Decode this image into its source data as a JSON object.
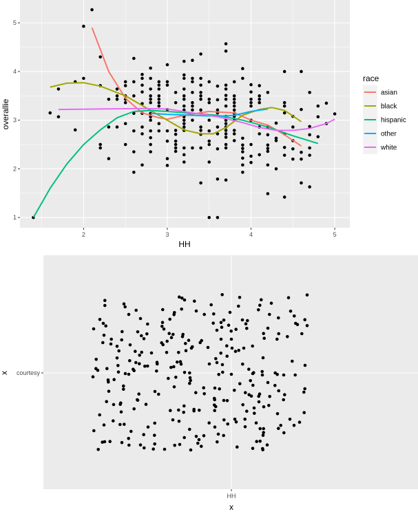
{
  "chart_data": [
    {
      "type": "scatter",
      "xlabel": "HH",
      "ylabel": "overallie",
      "xlim": [
        1.24,
        5.18
      ],
      "ylim": [
        0.79,
        5.47
      ],
      "xticks": [
        2,
        3,
        4,
        5
      ],
      "yticks": [
        1,
        2,
        3,
        4,
        5
      ],
      "grid": true,
      "legend": {
        "title": "race",
        "placement": "right"
      },
      "points": [
        [
          2.1,
          5.27
        ],
        [
          2.0,
          4.93
        ],
        [
          2.2,
          4.3
        ],
        [
          2.0,
          3.86
        ],
        [
          1.9,
          3.79
        ],
        [
          1.7,
          3.64
        ],
        [
          2.2,
          3.71
        ],
        [
          1.6,
          3.15
        ],
        [
          1.7,
          3.07
        ],
        [
          1.9,
          2.8
        ],
        [
          1.4,
          1.0
        ],
        [
          2.2,
          2.5
        ],
        [
          2.2,
          2.43
        ],
        [
          2.3,
          3.43
        ],
        [
          2.3,
          2.86
        ],
        [
          2.3,
          2.21
        ],
        [
          2.4,
          3.64
        ],
        [
          2.4,
          3.5
        ],
        [
          2.4,
          3.43
        ],
        [
          2.4,
          2.86
        ],
        [
          2.5,
          3.79
        ],
        [
          2.5,
          3.71
        ],
        [
          2.5,
          3.5
        ],
        [
          2.5,
          3.43
        ],
        [
          2.5,
          3.36
        ],
        [
          2.5,
          2.93
        ],
        [
          2.5,
          2.5
        ],
        [
          2.6,
          4.27
        ],
        [
          2.6,
          3.79
        ],
        [
          2.6,
          3.5
        ],
        [
          2.6,
          3.14
        ],
        [
          2.6,
          2.78
        ],
        [
          2.6,
          2.35
        ],
        [
          2.6,
          1.93
        ],
        [
          2.7,
          3.94
        ],
        [
          2.7,
          3.86
        ],
        [
          2.7,
          3.72
        ],
        [
          2.7,
          3.58
        ],
        [
          2.7,
          3.34
        ],
        [
          2.7,
          3.14
        ],
        [
          2.7,
          2.86
        ],
        [
          2.7,
          2.72
        ],
        [
          2.7,
          2.08
        ],
        [
          2.8,
          4.07
        ],
        [
          2.8,
          3.86
        ],
        [
          2.8,
          3.64
        ],
        [
          2.8,
          3.5
        ],
        [
          2.8,
          3.43
        ],
        [
          2.8,
          3.36
        ],
        [
          2.8,
          3.14
        ],
        [
          2.8,
          3.07
        ],
        [
          2.8,
          3.0
        ],
        [
          2.8,
          2.78
        ],
        [
          2.8,
          2.64
        ],
        [
          2.8,
          2.5
        ],
        [
          2.8,
          2.35
        ],
        [
          2.9,
          3.79
        ],
        [
          2.9,
          3.72
        ],
        [
          2.9,
          3.64
        ],
        [
          2.9,
          3.5
        ],
        [
          2.9,
          3.43
        ],
        [
          2.9,
          3.36
        ],
        [
          2.9,
          3.29
        ],
        [
          2.9,
          2.93
        ],
        [
          2.9,
          2.78
        ],
        [
          3.0,
          4.14
        ],
        [
          3.0,
          3.79
        ],
        [
          3.0,
          3.72
        ],
        [
          3.0,
          3.22
        ],
        [
          3.0,
          2.78
        ],
        [
          3.0,
          2.57
        ],
        [
          3.0,
          2.21
        ],
        [
          3.0,
          2.07
        ],
        [
          3.1,
          3.57
        ],
        [
          3.1,
          3.36
        ],
        [
          3.1,
          2.79
        ],
        [
          3.1,
          2.71
        ],
        [
          3.1,
          2.57
        ],
        [
          3.1,
          2.5
        ],
        [
          3.1,
          2.43
        ],
        [
          3.1,
          2.36
        ],
        [
          3.2,
          4.21
        ],
        [
          3.2,
          3.93
        ],
        [
          3.2,
          3.86
        ],
        [
          3.2,
          3.64
        ],
        [
          3.2,
          3.5
        ],
        [
          3.2,
          3.43
        ],
        [
          3.2,
          3.29
        ],
        [
          3.2,
          3.21
        ],
        [
          3.2,
          3.07
        ],
        [
          3.2,
          3.0
        ],
        [
          3.2,
          2.93
        ],
        [
          3.2,
          2.86
        ],
        [
          3.2,
          2.79
        ],
        [
          3.2,
          2.43
        ],
        [
          3.2,
          2.29
        ],
        [
          3.2,
          2.14
        ],
        [
          3.3,
          4.23
        ],
        [
          3.3,
          3.86
        ],
        [
          3.3,
          3.79
        ],
        [
          3.3,
          3.57
        ],
        [
          3.3,
          3.36
        ],
        [
          3.3,
          3.29
        ],
        [
          3.3,
          3.21
        ],
        [
          3.3,
          3.0
        ],
        [
          3.3,
          2.43
        ],
        [
          3.4,
          4.36
        ],
        [
          3.4,
          3.86
        ],
        [
          3.4,
          3.72
        ],
        [
          3.4,
          3.57
        ],
        [
          3.4,
          3.5
        ],
        [
          3.4,
          3.43
        ],
        [
          3.4,
          3.21
        ],
        [
          3.4,
          3.14
        ],
        [
          3.4,
          2.86
        ],
        [
          3.4,
          2.79
        ],
        [
          3.4,
          2.71
        ],
        [
          3.4,
          2.43
        ],
        [
          3.4,
          1.71
        ],
        [
          3.5,
          3.79
        ],
        [
          3.5,
          3.43
        ],
        [
          3.5,
          3.36
        ],
        [
          3.5,
          3.0
        ],
        [
          3.5,
          2.78
        ],
        [
          3.5,
          2.57
        ],
        [
          3.5,
          2.5
        ],
        [
          3.5,
          2.14
        ],
        [
          3.5,
          1.0
        ],
        [
          3.6,
          3.7
        ],
        [
          3.6,
          3.42
        ],
        [
          3.6,
          3.21
        ],
        [
          3.6,
          3.15
        ],
        [
          3.6,
          2.86
        ],
        [
          3.6,
          2.72
        ],
        [
          3.6,
          2.41
        ],
        [
          3.6,
          1.79
        ],
        [
          3.6,
          1.0
        ],
        [
          3.7,
          4.57
        ],
        [
          3.7,
          4.42
        ],
        [
          3.7,
          3.72
        ],
        [
          3.7,
          3.64
        ],
        [
          3.7,
          3.51
        ],
        [
          3.7,
          3.43
        ],
        [
          3.7,
          3.29
        ],
        [
          3.7,
          3.08
        ],
        [
          3.7,
          3.0
        ],
        [
          3.7,
          2.93
        ],
        [
          3.7,
          2.86
        ],
        [
          3.7,
          2.79
        ],
        [
          3.7,
          2.72
        ],
        [
          3.7,
          2.65
        ],
        [
          3.7,
          2.5
        ],
        [
          3.7,
          2.43
        ],
        [
          3.7,
          1.77
        ],
        [
          3.8,
          3.79
        ],
        [
          3.8,
          3.5
        ],
        [
          3.8,
          3.43
        ],
        [
          3.8,
          3.36
        ],
        [
          3.8,
          3.29
        ],
        [
          3.8,
          3.21
        ],
        [
          3.8,
          3.14
        ],
        [
          3.8,
          3.08
        ],
        [
          3.8,
          3.0
        ],
        [
          3.8,
          2.79
        ],
        [
          3.8,
          2.72
        ],
        [
          3.8,
          2.58
        ],
        [
          3.9,
          4.06
        ],
        [
          3.9,
          3.86
        ],
        [
          3.9,
          2.63
        ],
        [
          3.9,
          2.49
        ],
        [
          3.9,
          2.42
        ],
        [
          3.9,
          2.35
        ],
        [
          3.9,
          2.22
        ],
        [
          3.9,
          2.08
        ],
        [
          3.9,
          1.93
        ],
        [
          4.0,
          3.73
        ],
        [
          4.0,
          3.58
        ],
        [
          4.0,
          3.43
        ],
        [
          4.0,
          3.36
        ],
        [
          4.0,
          3.29
        ],
        [
          4.0,
          3.0
        ],
        [
          4.0,
          2.5
        ],
        [
          4.0,
          2.26
        ],
        [
          4.0,
          2.13
        ],
        [
          4.1,
          3.71
        ],
        [
          4.1,
          3.5
        ],
        [
          4.1,
          3.43
        ],
        [
          4.1,
          3.36
        ],
        [
          4.1,
          2.86
        ],
        [
          4.1,
          2.72
        ],
        [
          4.1,
          2.29
        ],
        [
          4.2,
          3.57
        ],
        [
          4.2,
          2.86
        ],
        [
          4.2,
          2.7
        ],
        [
          4.2,
          2.49
        ],
        [
          4.2,
          2.42
        ],
        [
          4.2,
          2.36
        ],
        [
          4.2,
          2.08
        ],
        [
          4.2,
          1.49
        ],
        [
          4.3,
          2.94
        ],
        [
          4.3,
          2.63
        ],
        [
          4.3,
          2.58
        ],
        [
          4.3,
          2.0
        ],
        [
          4.4,
          4.0
        ],
        [
          4.4,
          3.36
        ],
        [
          4.4,
          3.29
        ],
        [
          4.4,
          3.15
        ],
        [
          4.4,
          2.72
        ],
        [
          4.4,
          2.44
        ],
        [
          4.4,
          2.28
        ],
        [
          4.4,
          1.42
        ],
        [
          4.5,
          3.08
        ],
        [
          4.5,
          2.86
        ],
        [
          4.5,
          2.58
        ],
        [
          4.5,
          2.41
        ],
        [
          4.5,
          2.2
        ],
        [
          4.6,
          4.0
        ],
        [
          4.6,
          3.22
        ],
        [
          4.6,
          2.34
        ],
        [
          4.6,
          2.2
        ],
        [
          4.6,
          1.71
        ],
        [
          4.7,
          3.57
        ],
        [
          4.7,
          2.87
        ],
        [
          4.7,
          2.7
        ],
        [
          4.7,
          2.43
        ],
        [
          4.7,
          2.28
        ],
        [
          4.7,
          1.63
        ],
        [
          4.8,
          3.29
        ],
        [
          4.8,
          3.07
        ],
        [
          4.8,
          2.66
        ],
        [
          4.9,
          3.35
        ],
        [
          4.9,
          2.93
        ],
        [
          5.0,
          3.13
        ]
      ],
      "series": [
        {
          "name": "asian",
          "color": "#F8766D",
          "x": [
            2.1,
            2.3,
            2.5,
            2.7,
            2.9,
            3.0,
            3.2,
            3.5,
            3.8,
            4.0,
            4.2,
            4.4,
            4.6
          ],
          "y": [
            4.9,
            4.0,
            3.45,
            3.15,
            3.05,
            3.02,
            3.1,
            3.18,
            3.15,
            3.0,
            2.9,
            2.7,
            2.47
          ]
        },
        {
          "name": "black",
          "color": "#A3A500",
          "x": [
            1.6,
            1.8,
            2.0,
            2.2,
            2.5,
            2.8,
            3.0,
            3.2,
            3.4,
            3.55,
            3.7,
            3.9,
            4.1,
            4.25,
            4.4,
            4.6
          ],
          "y": [
            3.68,
            3.76,
            3.77,
            3.7,
            3.5,
            3.2,
            3.0,
            2.8,
            2.72,
            2.72,
            2.85,
            3.1,
            3.22,
            3.26,
            3.2,
            2.97
          ]
        },
        {
          "name": "hispanic",
          "color": "#00BF7D",
          "x": [
            1.4,
            1.6,
            1.8,
            2.0,
            2.2,
            2.4,
            2.6,
            2.8,
            3.0,
            3.3,
            3.6,
            3.9,
            4.2,
            4.5,
            4.8
          ],
          "y": [
            1.0,
            1.6,
            2.1,
            2.5,
            2.8,
            3.05,
            3.18,
            3.2,
            3.18,
            3.14,
            3.1,
            3.0,
            2.86,
            2.68,
            2.52
          ]
        },
        {
          "name": "other",
          "color": "#00B0F6",
          "x": [
            2.8,
            3.0,
            3.3,
            3.6,
            3.8,
            4.0,
            4.2
          ],
          "y": [
            3.14,
            3.12,
            3.1,
            3.08,
            3.1,
            3.18,
            3.23
          ]
        },
        {
          "name": "white",
          "color": "#E76BF3",
          "x": [
            1.7,
            2.2,
            2.7,
            3.0,
            3.3,
            3.6,
            3.9,
            4.1,
            4.3,
            4.5,
            4.7,
            4.9,
            5.0
          ],
          "y": [
            3.22,
            3.23,
            3.24,
            3.23,
            3.15,
            3.07,
            2.95,
            2.85,
            2.79,
            2.79,
            2.83,
            2.93,
            3.02
          ]
        }
      ]
    },
    {
      "type": "scatter",
      "xlabel": "x",
      "ylabel": "x",
      "x_categories": [
        "HH"
      ],
      "y_categories": [
        "courtesy"
      ],
      "jitter": true,
      "grid": true
    }
  ]
}
